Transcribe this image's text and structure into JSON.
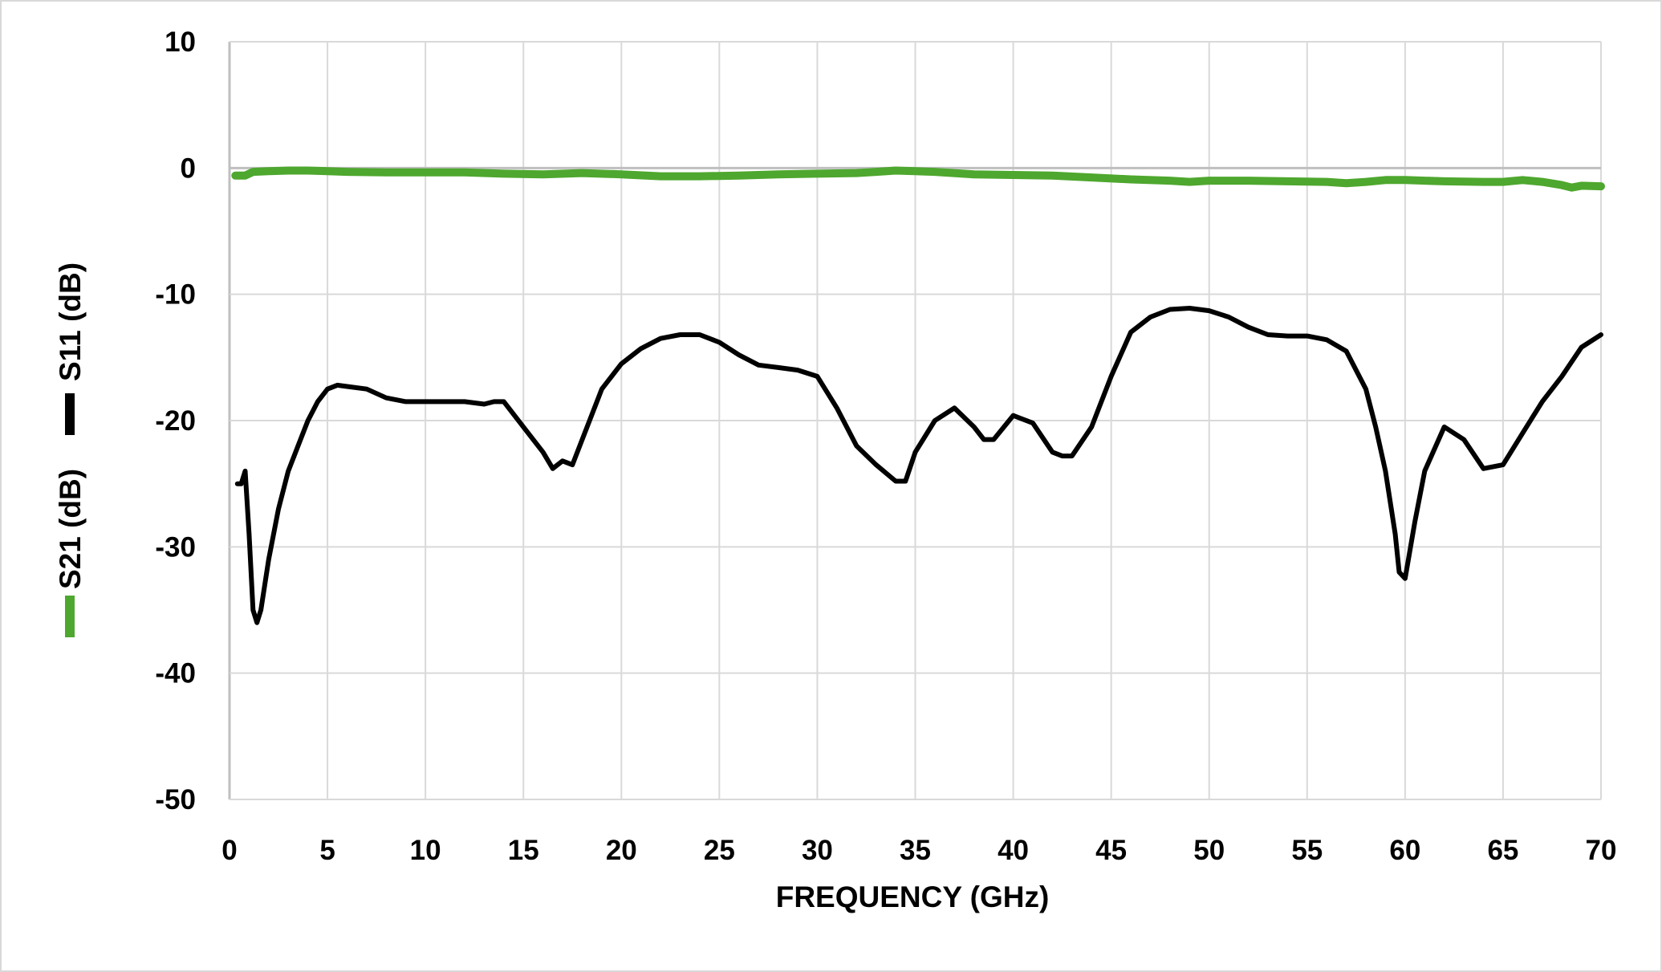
{
  "chart_data": {
    "type": "line",
    "title": "",
    "xlabel": "FREQUENCY (GHz)",
    "ylabel_s21": "S21 (dB)",
    "ylabel_s11": "S11 (dB)",
    "xlim": [
      0,
      70
    ],
    "ylim": [
      -50,
      10
    ],
    "x_ticks": [
      0,
      5,
      10,
      15,
      20,
      25,
      30,
      35,
      40,
      45,
      50,
      55,
      60,
      65,
      70
    ],
    "y_ticks": [
      10,
      0,
      -10,
      -20,
      -30,
      -40,
      -50
    ],
    "grid": true,
    "legend_placement": "left, rotated with y-axis label",
    "series": [
      {
        "name": "S21 (dB)",
        "color": "#4ea72e",
        "x": [
          0.3,
          0.8,
          1.2,
          2,
          3,
          4,
          5,
          6,
          8,
          10,
          12,
          14,
          16,
          18,
          20,
          22,
          24,
          26,
          28,
          30,
          32,
          33,
          34,
          35,
          36,
          38,
          40,
          42,
          44,
          46,
          48,
          49,
          50,
          52,
          54,
          56,
          57,
          58,
          59,
          60,
          62,
          64,
          65,
          66,
          67,
          68,
          68.5,
          69,
          70
        ],
        "y": [
          -0.6,
          -0.6,
          -0.3,
          -0.25,
          -0.2,
          -0.2,
          -0.25,
          -0.3,
          -0.35,
          -0.35,
          -0.35,
          -0.45,
          -0.5,
          -0.4,
          -0.5,
          -0.65,
          -0.65,
          -0.6,
          -0.5,
          -0.45,
          -0.4,
          -0.3,
          -0.2,
          -0.25,
          -0.3,
          -0.5,
          -0.55,
          -0.6,
          -0.75,
          -0.9,
          -1.0,
          -1.1,
          -1.0,
          -1.0,
          -1.05,
          -1.1,
          -1.2,
          -1.1,
          -0.95,
          -0.95,
          -1.05,
          -1.1,
          -1.1,
          -0.95,
          -1.1,
          -1.35,
          -1.55,
          -1.4,
          -1.45
        ]
      },
      {
        "name": "S11 (dB)",
        "color": "#000000",
        "x": [
          0.4,
          0.6,
          0.8,
          1.0,
          1.2,
          1.4,
          1.6,
          2.0,
          2.5,
          3.0,
          3.5,
          4.0,
          4.5,
          5.0,
          5.5,
          6.0,
          7.0,
          8.0,
          9.0,
          10,
          11,
          12,
          13,
          13.5,
          14,
          15,
          16,
          16.5,
          17,
          17.5,
          18,
          19,
          20,
          21,
          22,
          23,
          24,
          25,
          26,
          27,
          28,
          29,
          30,
          31,
          32,
          33,
          34,
          34.5,
          35,
          36,
          37,
          38,
          38.5,
          39,
          40,
          41,
          42,
          42.5,
          43,
          44,
          45,
          46,
          47,
          48,
          49,
          50,
          51,
          52,
          53,
          54,
          55,
          56,
          57,
          58,
          58.5,
          59,
          59.5,
          59.7,
          60,
          60.5,
          61,
          62,
          63,
          64,
          65,
          66,
          67,
          68,
          69,
          70
        ],
        "y": [
          -25.0,
          -25.0,
          -24.0,
          -29.0,
          -35.0,
          -36.0,
          -35.0,
          -31.0,
          -27.0,
          -24.0,
          -22.0,
          -20.0,
          -18.5,
          -17.5,
          -17.2,
          -17.3,
          -17.5,
          -18.2,
          -18.5,
          -18.5,
          -18.5,
          -18.5,
          -18.7,
          -18.5,
          -18.5,
          -20.5,
          -22.5,
          -23.8,
          -23.2,
          -23.5,
          -21.5,
          -17.5,
          -15.5,
          -14.3,
          -13.5,
          -13.2,
          -13.2,
          -13.8,
          -14.8,
          -15.6,
          -15.8,
          -16.0,
          -16.5,
          -19.0,
          -22.0,
          -23.5,
          -24.8,
          -24.8,
          -22.5,
          -20.0,
          -19.0,
          -20.5,
          -21.5,
          -21.5,
          -19.6,
          -20.2,
          -22.5,
          -22.8,
          -22.8,
          -20.5,
          -16.5,
          -13.0,
          -11.8,
          -11.2,
          -11.1,
          -11.3,
          -11.8,
          -12.6,
          -13.2,
          -13.3,
          -13.3,
          -13.6,
          -14.5,
          -17.5,
          -20.5,
          -24.0,
          -29.0,
          -32.0,
          -32.5,
          -28.0,
          -24.0,
          -20.5,
          -21.5,
          -23.8,
          -23.5,
          -21.0,
          -18.5,
          -16.5,
          -14.2,
          -13.2
        ]
      }
    ]
  }
}
